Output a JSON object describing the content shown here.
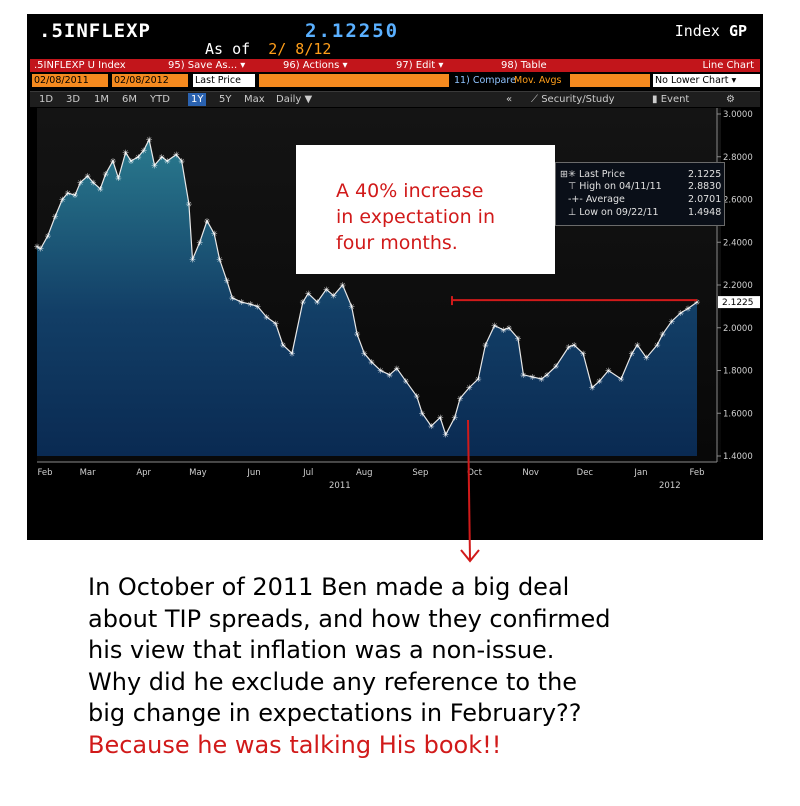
{
  "header": {
    "ticker": ".5INFLEXP",
    "price": "2.12250",
    "index_prefix": "Index",
    "index_code": "GP",
    "asof_label": "As of",
    "asof_date": "2/ 8/12"
  },
  "toolbar": {
    "security": ".5INFLEXP U Index",
    "save": "95) Save As...",
    "actions": "96) Actions",
    "edit": "97) Edit",
    "table": "98) Table",
    "chart_type": "Line Chart",
    "start_date": "02/08/2011",
    "end_date": "02/08/2012",
    "price_type": "Last Price",
    "compare": "11) Compare",
    "mov_avgs": "Mov. Avgs",
    "lower_chart": "No Lower Chart",
    "periods": [
      "1D",
      "3D",
      "1M",
      "6M",
      "YTD",
      "1Y",
      "5Y",
      "Max"
    ],
    "frequency": "Daily",
    "security_study": "Security/Study",
    "event": "Event"
  },
  "legend": {
    "last_label": "Last Price",
    "last_value": "2.1225",
    "high_label": "High on 04/11/11",
    "high_value": "2.8830",
    "avg_label": "Average",
    "avg_value": "2.0701",
    "low_label": "Low on 09/22/11",
    "low_value": "1.4948"
  },
  "annotation": {
    "line1": "A 40% increase",
    "line2": "in expectation in",
    "line3": "four months."
  },
  "caption": {
    "line1": "In October of 2011 Ben made a big  deal",
    "line2": "about TIP spreads, and how they confirmed",
    "line3": "his view that inflation was a non-issue.",
    "line4": "Why did he exclude any reference to the",
    "line5": "big change in expectations in February??",
    "line6": "Because he was talking His book!!"
  },
  "colors": {
    "accent_red": "#d11a1a",
    "bloomberg_orange": "#f58a1f",
    "line": "#e8e8e8"
  },
  "chart_data": {
    "type": "area",
    "x": [
      "2011-02-08",
      "2011-02-10",
      "2011-02-14",
      "2011-02-18",
      "2011-02-22",
      "2011-02-25",
      "2011-03-01",
      "2011-03-04",
      "2011-03-08",
      "2011-03-11",
      "2011-03-15",
      "2011-03-18",
      "2011-03-22",
      "2011-03-25",
      "2011-03-29",
      "2011-04-01",
      "2011-04-05",
      "2011-04-08",
      "2011-04-11",
      "2011-04-14",
      "2011-04-18",
      "2011-04-21",
      "2011-04-26",
      "2011-04-29",
      "2011-05-03",
      "2011-05-05",
      "2011-05-09",
      "2011-05-13",
      "2011-05-17",
      "2011-05-20",
      "2011-05-24",
      "2011-05-27",
      "2011-06-01",
      "2011-06-06",
      "2011-06-10",
      "2011-06-15",
      "2011-06-20",
      "2011-06-24",
      "2011-06-29",
      "2011-07-05",
      "2011-07-08",
      "2011-07-13",
      "2011-07-18",
      "2011-07-22",
      "2011-07-27",
      "2011-08-01",
      "2011-08-04",
      "2011-08-08",
      "2011-08-12",
      "2011-08-17",
      "2011-08-22",
      "2011-08-26",
      "2011-08-31",
      "2011-09-06",
      "2011-09-09",
      "2011-09-14",
      "2011-09-19",
      "2011-09-22",
      "2011-09-27",
      "2011-09-30",
      "2011-10-05",
      "2011-10-10",
      "2011-10-14",
      "2011-10-19",
      "2011-10-24",
      "2011-10-27",
      "2011-11-01",
      "2011-11-04",
      "2011-11-09",
      "2011-11-14",
      "2011-11-17",
      "2011-11-22",
      "2011-11-29",
      "2011-12-02",
      "2011-12-07",
      "2011-12-12",
      "2011-12-16",
      "2011-12-21",
      "2011-12-28",
      "2012-01-03",
      "2012-01-06",
      "2012-01-11",
      "2012-01-17",
      "2012-01-20",
      "2012-01-25",
      "2012-01-30",
      "2012-02-03",
      "2012-02-08"
    ],
    "values": [
      2.38,
      2.37,
      2.43,
      2.52,
      2.6,
      2.63,
      2.62,
      2.68,
      2.71,
      2.68,
      2.65,
      2.72,
      2.78,
      2.7,
      2.82,
      2.78,
      2.8,
      2.83,
      2.88,
      2.76,
      2.8,
      2.78,
      2.81,
      2.78,
      2.58,
      2.32,
      2.4,
      2.5,
      2.44,
      2.32,
      2.22,
      2.14,
      2.12,
      2.11,
      2.1,
      2.05,
      2.02,
      1.92,
      1.88,
      2.12,
      2.16,
      2.12,
      2.18,
      2.15,
      2.2,
      2.1,
      1.97,
      1.88,
      1.84,
      1.8,
      1.78,
      1.81,
      1.75,
      1.68,
      1.6,
      1.54,
      1.58,
      1.5,
      1.58,
      1.67,
      1.72,
      1.76,
      1.92,
      2.01,
      1.99,
      2.0,
      1.95,
      1.78,
      1.77,
      1.76,
      1.78,
      1.82,
      1.91,
      1.92,
      1.88,
      1.72,
      1.75,
      1.8,
      1.76,
      1.88,
      1.92,
      1.86,
      1.92,
      1.97,
      2.03,
      2.07,
      2.09,
      2.12
    ],
    "month_labels": [
      "Feb",
      "Mar",
      "Apr",
      "May",
      "Jun",
      "Jul",
      "Aug",
      "Sep",
      "Oct",
      "Nov",
      "Dec",
      "Jan",
      "Feb"
    ],
    "year_labels": [
      "2011",
      "2012"
    ],
    "y_ticks": [
      "3.0000",
      "2.8000",
      "2.6000",
      "2.4000",
      "2.2000",
      "2.0000",
      "1.8000",
      "1.6000",
      "1.4000"
    ],
    "ylim": [
      1.4,
      3.0
    ],
    "last_marker": "2.1225",
    "grid": false
  }
}
